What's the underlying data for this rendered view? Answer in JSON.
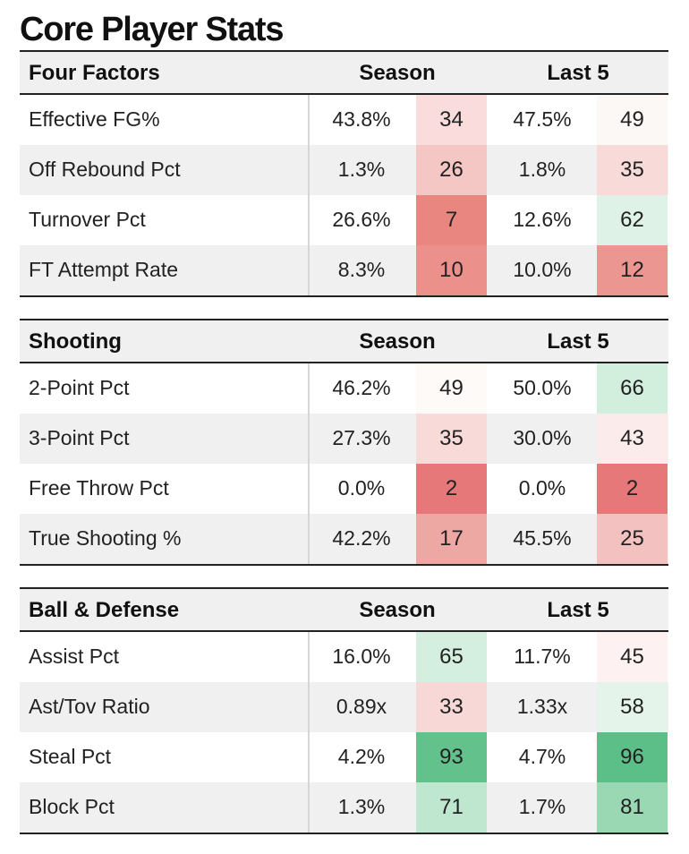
{
  "title": "Core Player Stats",
  "sections": [
    {
      "label": "Four Factors",
      "season_header": "Season",
      "last5_header": "Last 5",
      "rows": [
        {
          "label": "Effective FG%",
          "season": "43.8%",
          "season_rank": "34",
          "season_color": "#f9dcdb",
          "last5": "47.5%",
          "last5_rank": "49",
          "last5_color": "#fbf8f6"
        },
        {
          "label": "Off Rebound Pct",
          "season": "1.3%",
          "season_rank": "26",
          "season_color": "#f4c6c4",
          "last5": "1.8%",
          "last5_rank": "35",
          "last5_color": "#f8dad8"
        },
        {
          "label": "Turnover Pct",
          "season": "26.6%",
          "season_rank": "7",
          "season_color": "#e98680",
          "last5": "12.6%",
          "last5_rank": "62",
          "last5_color": "#dff2e7"
        },
        {
          "label": "FT Attempt Rate",
          "season": "8.3%",
          "season_rank": "10",
          "season_color": "#eb908a",
          "last5": "10.0%",
          "last5_rank": "12",
          "last5_color": "#ec9691"
        }
      ]
    },
    {
      "label": "Shooting",
      "season_header": "Season",
      "last5_header": "Last 5",
      "rows": [
        {
          "label": "2-Point Pct",
          "season": "46.2%",
          "season_rank": "49",
          "season_color": "#fdfaf8",
          "last5": "50.0%",
          "last5_rank": "66",
          "last5_color": "#d2eedd"
        },
        {
          "label": "3-Point Pct",
          "season": "27.3%",
          "season_rank": "35",
          "season_color": "#f8dad8",
          "last5": "30.0%",
          "last5_rank": "43",
          "last5_color": "#fbeceb"
        },
        {
          "label": "Free Throw Pct",
          "season": "0.0%",
          "season_rank": "2",
          "season_color": "#e6787a",
          "last5": "0.0%",
          "last5_rank": "2",
          "last5_color": "#e6787a"
        },
        {
          "label": "True Shooting %",
          "season": "42.2%",
          "season_rank": "17",
          "season_color": "#eea8a4",
          "last5": "45.5%",
          "last5_rank": "25",
          "last5_color": "#f3c1bf"
        }
      ]
    },
    {
      "label": "Ball & Defense",
      "season_header": "Season",
      "last5_header": "Last 5",
      "rows": [
        {
          "label": "Assist Pct",
          "season": "16.0%",
          "season_rank": "65",
          "season_color": "#d4eedf",
          "last5": "11.7%",
          "last5_rank": "45",
          "last5_color": "#fdf1f1"
        },
        {
          "label": "Ast/Tov Ratio",
          "season": "0.89x",
          "season_rank": "33",
          "season_color": "#f8d8d6",
          "last5": "1.33x",
          "last5_rank": "58",
          "last5_color": "#e4f4ea"
        },
        {
          "label": "Steal Pct",
          "season": "4.2%",
          "season_rank": "93",
          "season_color": "#63c18c",
          "last5": "4.7%",
          "last5_rank": "96",
          "last5_color": "#5dbf88"
        },
        {
          "label": "Block Pct",
          "season": "1.3%",
          "season_rank": "71",
          "season_color": "#bfe7cf",
          "last5": "1.7%",
          "last5_rank": "81",
          "last5_color": "#99d8b3"
        }
      ]
    }
  ]
}
